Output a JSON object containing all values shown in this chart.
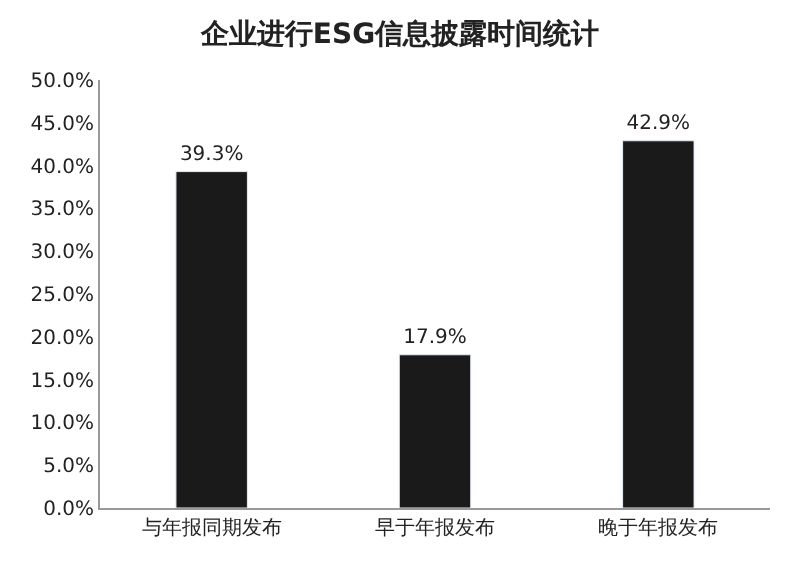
{
  "chart_data": {
    "type": "bar",
    "title": "企业进行ESG信息披露时间统计",
    "categories": [
      "与年报同期发布",
      "早于年报发布",
      "晚于年报发布"
    ],
    "values": [
      39.3,
      17.9,
      42.9
    ],
    "value_labels": [
      "39.3%",
      "17.9%",
      "42.9%"
    ],
    "color": "#1a1a1a",
    "ylim": [
      0,
      50
    ],
    "yticks": [
      {
        "value": 0,
        "label": "0.0%"
      },
      {
        "value": 5,
        "label": "5.0%"
      },
      {
        "value": 10,
        "label": "10.0%"
      },
      {
        "value": 15,
        "label": "15.0%"
      },
      {
        "value": 20,
        "label": "20.0%"
      },
      {
        "value": 25,
        "label": "25.0%"
      },
      {
        "value": 30,
        "label": "30.0%"
      },
      {
        "value": 35,
        "label": "35.0%"
      },
      {
        "value": 40,
        "label": "40.0%"
      },
      {
        "value": 45,
        "label": "45.0%"
      },
      {
        "value": 50,
        "label": "50.0%"
      }
    ]
  }
}
